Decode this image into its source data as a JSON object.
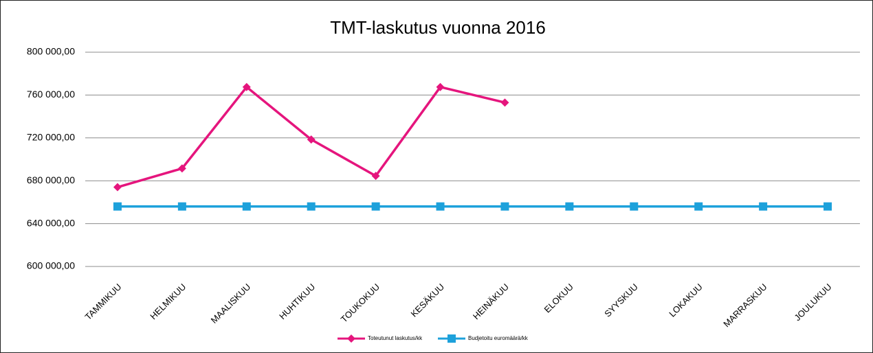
{
  "chart_data": {
    "type": "line",
    "title": "TMT-laskutus vuonna 2016",
    "categories": [
      "TAMMIKUU",
      "HELMIKUU",
      "MAALISKUU",
      "HUHTIKUU",
      "TOUKOKUU",
      "KESÄKUU",
      "HEINÄKUU",
      "ELOKUU",
      "SYYSKUU",
      "LOKAKUU",
      "MARRASKUU",
      "JOULUKUU"
    ],
    "series": [
      {
        "name": "Toteutunut laskutus/kk",
        "color": "#e5157d",
        "marker": "diamond",
        "values": [
          674000,
          691500,
          767500,
          718500,
          684500,
          767500,
          753000,
          null,
          null,
          null,
          null,
          null
        ]
      },
      {
        "name": "Budjetoitu euromäärä/kk",
        "color": "#1da1db",
        "marker": "square",
        "values": [
          656000,
          656000,
          656000,
          656000,
          656000,
          656000,
          656000,
          656000,
          656000,
          656000,
          656000,
          656000
        ]
      }
    ],
    "ylim": [
      600000,
      800000
    ],
    "yticks": [
      {
        "value": 600000,
        "label": "600 000,00"
      },
      {
        "value": 640000,
        "label": "640 000,00"
      },
      {
        "value": 680000,
        "label": "680 000,00"
      },
      {
        "value": 720000,
        "label": "720 000,00"
      },
      {
        "value": 760000,
        "label": "760 000,00"
      },
      {
        "value": 800000,
        "label": "800 000,00"
      }
    ],
    "grid": true,
    "legend": "bottom"
  }
}
